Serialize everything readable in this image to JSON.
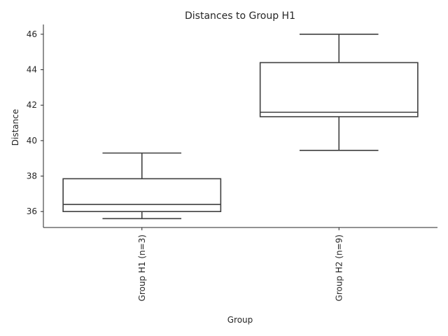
{
  "chart_data": {
    "type": "box",
    "title": "Distances to Group H1",
    "xlabel": "Group",
    "ylabel": "Distance",
    "categories": [
      "Group H1 (n=3)",
      "Group H2 (n=9)"
    ],
    "boxes": [
      {
        "whislo": 35.6,
        "q1": 36.0,
        "med": 36.4,
        "q3": 37.85,
        "whishi": 39.3
      },
      {
        "whislo": 39.45,
        "q1": 41.35,
        "med": 41.6,
        "q3": 44.4,
        "whishi": 46.0
      }
    ],
    "yticks": [
      36,
      38,
      40,
      42,
      44,
      46
    ],
    "ylim": [
      35.1,
      46.55
    ],
    "grid": false,
    "colors": {
      "line": "#3f3f3f",
      "text": "#262626"
    }
  }
}
